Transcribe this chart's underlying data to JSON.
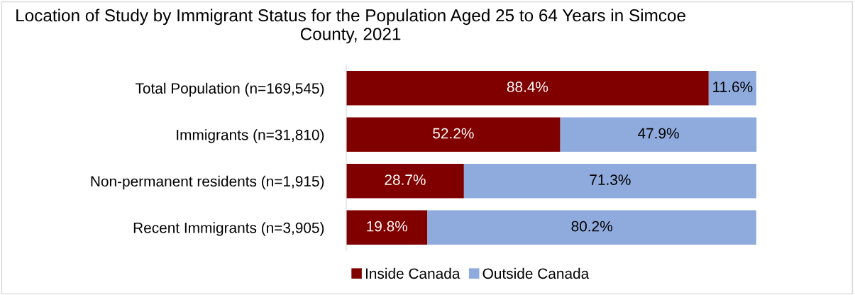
{
  "chart_data": {
    "type": "bar",
    "orientation": "horizontal",
    "stacked": true,
    "title": "Location of Study by Immigrant Status for the Population Aged 25 to 64 Years in Simcoe County, 2021",
    "categories": [
      "Total Population (n=169,545)",
      "Immigrants (n=31,810)",
      "Non-permanent residents (n=1,915)",
      "Recent Immigrants (n=3,905)"
    ],
    "series": [
      {
        "name": "Inside Canada",
        "color": "#800000",
        "values": [
          88.4,
          52.2,
          28.7,
          19.8
        ],
        "value_labels": [
          "88.4%",
          "52.2%",
          "28.7%",
          "19.8%"
        ]
      },
      {
        "name": "Outside Canada",
        "color": "#8faadc",
        "values": [
          11.6,
          47.9,
          71.3,
          80.2
        ],
        "value_labels": [
          "11.6%",
          "47.9%",
          "71.3%",
          "80.2%"
        ]
      }
    ],
    "legend": "bottom",
    "grid": false
  }
}
